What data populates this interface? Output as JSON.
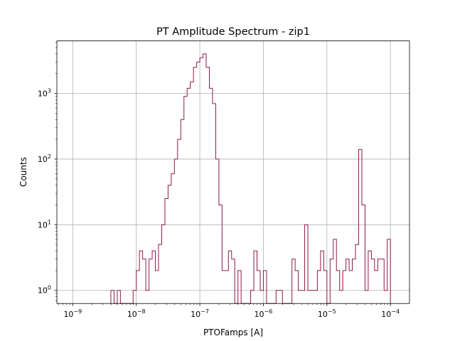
{
  "chart_data": {
    "type": "histogram",
    "title": "PT Amplitude Spectrum - zip1",
    "xlabel": "PTOFamps [A]",
    "ylabel": "Counts",
    "xscale": "log",
    "yscale": "log",
    "xlim_log10": [
      -9.25,
      -3.7
    ],
    "ylim_log10": [
      -0.2,
      3.8
    ],
    "grid": true,
    "x_ticks": [
      {
        "exp": -9,
        "base": "10",
        "sup": "−9"
      },
      {
        "exp": -8,
        "base": "10",
        "sup": "−8"
      },
      {
        "exp": -7,
        "base": "10",
        "sup": "−7"
      },
      {
        "exp": -6,
        "base": "10",
        "sup": "−6"
      },
      {
        "exp": -5,
        "base": "10",
        "sup": "−5"
      },
      {
        "exp": -4,
        "base": "10",
        "sup": "−4"
      }
    ],
    "y_ticks": [
      {
        "exp": 0,
        "base": "10",
        "sup": "0"
      },
      {
        "exp": 1,
        "base": "10",
        "sup": "1"
      },
      {
        "exp": 2,
        "base": "10",
        "sup": "2"
      },
      {
        "exp": 3,
        "base": "10",
        "sup": "3"
      }
    ],
    "line_color": "#8b1a4a",
    "bin_start_log10": -8.4,
    "bin_width_log10": 0.05,
    "counts": [
      1,
      0,
      1,
      0,
      0,
      0,
      0,
      1,
      2,
      4,
      3,
      1,
      3,
      4,
      2,
      5,
      10,
      25,
      40,
      60,
      100,
      200,
      400,
      900,
      1200,
      1500,
      2500,
      3000,
      3500,
      4000,
      2500,
      1200,
      700,
      100,
      20,
      2,
      2,
      4,
      3,
      0,
      2,
      0,
      0,
      0,
      1,
      4,
      2,
      1,
      2,
      0,
      0,
      0,
      1,
      1,
      0,
      0,
      0,
      3,
      2,
      1,
      1,
      10,
      1,
      1,
      1,
      2,
      4,
      2,
      0,
      3,
      6,
      2,
      1,
      2,
      3,
      2,
      3,
      5,
      140,
      20,
      1,
      4,
      3,
      2,
      3,
      3,
      1,
      6
    ],
    "note": "Counts of 0 are drawn at the bottom edge of the axes."
  }
}
